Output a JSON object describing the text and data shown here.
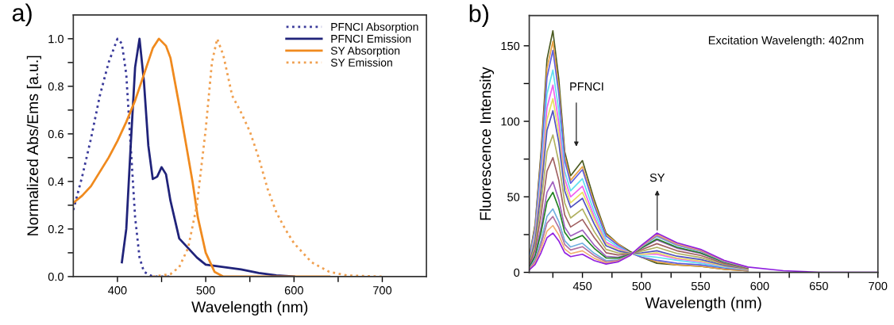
{
  "chart_data": [
    {
      "type": "line",
      "title": "a)",
      "xlabel": "Wavelength (nm)",
      "ylabel": "Normalized Abs/Ems [a.u.]",
      "xlim": [
        350,
        750
      ],
      "xticks": [
        400,
        {
          "value": 450,
          "label": null
        },
        500,
        {
          "value": 550,
          "label": null
        },
        600,
        {
          "value": 650,
          "label": null
        },
        700
      ],
      "ylim": [
        0,
        1.1
      ],
      "yticks": [
        "0.0",
        {
          "value": 0.1,
          "label": null
        },
        0.2,
        {
          "value": 0.3,
          "label": null
        },
        0.4,
        {
          "value": 0.5,
          "label": null
        },
        0.6,
        {
          "value": 0.7,
          "label": null
        },
        0.8,
        {
          "value": 0.9,
          "label": null
        },
        "1.0"
      ],
      "grid": false,
      "legend": "top right",
      "marker": "none",
      "series": [
        {
          "name": "PFNCI Absorption",
          "color": "#3a3a9a",
          "line_style": "dotted",
          "x": [
            350,
            360,
            370,
            380,
            390,
            400,
            405,
            410,
            415,
            420,
            425,
            430,
            440,
            460
          ],
          "values": [
            0.28,
            0.42,
            0.58,
            0.76,
            0.9,
            1.0,
            0.98,
            0.85,
            0.55,
            0.25,
            0.08,
            0.02,
            0,
            0
          ]
        },
        {
          "name": "PFNCI Emission",
          "color": "#20237a",
          "line_style": "solid",
          "x": [
            405,
            410,
            415,
            420,
            425,
            430,
            435,
            440,
            445,
            450,
            455,
            460,
            470,
            480,
            490,
            500,
            520,
            540,
            560,
            580,
            600
          ],
          "values": [
            0.06,
            0.2,
            0.55,
            0.88,
            1.0,
            0.82,
            0.55,
            0.41,
            0.42,
            0.46,
            0.43,
            0.32,
            0.16,
            0.12,
            0.08,
            0.05,
            0.04,
            0.03,
            0.015,
            0.005,
            0
          ]
        },
        {
          "name": "SY Absorption",
          "color": "#f08a1e",
          "line_style": "solid",
          "x": [
            350,
            360,
            370,
            380,
            390,
            400,
            410,
            420,
            430,
            440,
            447,
            455,
            460,
            466,
            470,
            478,
            485,
            491,
            500,
            510,
            520,
            640
          ],
          "values": [
            0.31,
            0.34,
            0.38,
            0.44,
            0.5,
            0.57,
            0.65,
            0.74,
            0.85,
            0.96,
            1.0,
            0.97,
            0.92,
            0.8,
            0.72,
            0.55,
            0.4,
            0.25,
            0.1,
            0.02,
            0,
            0
          ]
        },
        {
          "name": "SY Emission",
          "color": "#f0a050",
          "line_style": "dotted",
          "x": [
            440,
            450,
            460,
            470,
            480,
            490,
            500,
            507,
            513,
            520,
            530,
            540,
            550,
            560,
            570,
            580,
            590,
            600,
            620,
            640,
            660,
            700
          ],
          "values": [
            0,
            0.005,
            0.01,
            0.04,
            0.12,
            0.3,
            0.62,
            0.9,
            1.0,
            0.93,
            0.76,
            0.69,
            0.61,
            0.5,
            0.37,
            0.27,
            0.2,
            0.14,
            0.06,
            0.02,
            0.005,
            0
          ]
        }
      ]
    },
    {
      "type": "line",
      "title": "b)",
      "xlabel": "Wavelength (nm)",
      "ylabel": "Fluorescence Intensity",
      "xlim": [
        405,
        700
      ],
      "xticks": [
        {
          "value": 425,
          "label": null
        },
        450,
        {
          "value": 475,
          "label": null
        },
        500,
        {
          "value": 525,
          "label": null
        },
        550,
        {
          "value": 575,
          "label": null
        },
        600,
        {
          "value": 625,
          "label": null
        },
        650,
        {
          "value": 675,
          "label": null
        },
        700
      ],
      "ylim": [
        0,
        170
      ],
      "yticks": [
        0,
        {
          "value": 25,
          "label": null
        },
        50,
        {
          "value": 75,
          "label": null
        },
        100,
        {
          "value": 125,
          "label": null
        },
        150
      ],
      "grid": false,
      "legend": false,
      "marker": "none",
      "line_style": "solid",
      "x": [
        405,
        410,
        415,
        420,
        425,
        430,
        435,
        440,
        450,
        460,
        470,
        480,
        490,
        500,
        513,
        530,
        550,
        570,
        590,
        620,
        650,
        700
      ],
      "annotations": [
        "Excitation Wavelength: 402nm",
        "PFNCI",
        "SY"
      ],
      "series": [
        {
          "color": "#4a5a20",
          "values": [
            10,
            32,
            80,
            141,
            160,
            128,
            80,
            64,
            74,
            48,
            26,
            19,
            14,
            10,
            6,
            5,
            4,
            2,
            1,
            null,
            null,
            null
          ]
        },
        {
          "color": "#e8a040",
          "values": [
            9,
            31,
            77,
            135,
            153,
            122,
            77,
            61,
            70,
            46,
            25,
            19,
            13,
            10,
            7,
            5,
            4,
            2,
            1,
            null,
            null,
            null
          ]
        },
        {
          "color": "#6060e0",
          "values": [
            9,
            29,
            74,
            129,
            147,
            118,
            74,
            59,
            68,
            44,
            24,
            18,
            13,
            10,
            8,
            6,
            5,
            3,
            1.5,
            null,
            null,
            null
          ]
        },
        {
          "color": "#60e0f0",
          "values": [
            8,
            27,
            67,
            118,
            134,
            107,
            67,
            54,
            62,
            40,
            22,
            17,
            13,
            11,
            10,
            8,
            6,
            3.5,
            1.7,
            null,
            null,
            null
          ]
        },
        {
          "color": "#f060f0",
          "values": [
            7,
            25,
            62,
            109,
            124,
            99,
            62,
            50,
            57,
            37,
            20,
            16,
            13,
            12,
            12,
            9,
            7,
            4,
            1.9,
            null,
            null,
            null
          ]
        },
        {
          "color": "#e8e060",
          "values": [
            7,
            23,
            58,
            101,
            115,
            92,
            58,
            46,
            53,
            35,
            19,
            15,
            13,
            12,
            13,
            9.5,
            7.5,
            4.1,
            1.9,
            null,
            null,
            null
          ]
        },
        {
          "color": "#5050c0",
          "values": [
            6,
            21,
            54,
            94,
            107,
            86,
            54,
            43,
            49,
            32,
            17.6,
            14.3,
            12.6,
            12.9,
            14.3,
            10.7,
            8.5,
            4.6,
            2.2,
            null,
            null,
            null
          ]
        },
        {
          "color": "#b0b060",
          "values": [
            5.5,
            18,
            46,
            80,
            91,
            73,
            46,
            36,
            42,
            27,
            15.2,
            12.9,
            12.3,
            14,
            16.6,
            12.5,
            9.8,
            5.3,
            2.4,
            null,
            null,
            null
          ]
        },
        {
          "color": "#a06060",
          "values": [
            4.6,
            15,
            38,
            67,
            76,
            61,
            38,
            30,
            35,
            23,
            13,
            11.5,
            12.1,
            15,
            19,
            14.3,
            11.2,
            5.9,
            2.7,
            null,
            null,
            null
          ]
        },
        {
          "color": "#a060c0",
          "values": [
            3.6,
            12,
            30,
            53,
            60,
            48,
            30,
            24,
            28,
            18,
            10.6,
            10,
            11.8,
            16,
            21.4,
            16,
            12.5,
            6.6,
            3,
            null,
            null,
            null
          ]
        },
        {
          "color": "#208020",
          "values": [
            3.2,
            10.6,
            26.5,
            46.6,
            53,
            42.4,
            26.5,
            21.2,
            24.4,
            15.9,
            9.5,
            9.4,
            11.5,
            16.2,
            22.1,
            16.6,
            12.9,
            6.8,
            3,
            null,
            null,
            null
          ]
        },
        {
          "color": "#70b0e0",
          "values": [
            2.5,
            8.4,
            21,
            37,
            42,
            33.6,
            21,
            16.8,
            19.3,
            12.6,
            7.8,
            8.3,
            11.3,
            16.8,
            23.7,
            17.8,
            13.8,
            7.2,
            3.2,
            null,
            null,
            null
          ]
        },
        {
          "color": "#b070a0",
          "values": [
            2.2,
            7.4,
            18.5,
            32.6,
            37,
            29.6,
            18.5,
            14.8,
            17,
            11.1,
            7,
            7.9,
            11.2,
            17.2,
            24.5,
            18.4,
            14.2,
            7.5,
            3.3,
            null,
            null,
            null
          ]
        },
        {
          "color": "#f0b070",
          "values": [
            1.9,
            6.2,
            15.5,
            27.3,
            31,
            24.8,
            15.5,
            12.4,
            14.3,
            9.3,
            6.2,
            7.3,
            11,
            17.5,
            25.2,
            18.9,
            14.7,
            7.7,
            3.3,
            null,
            null,
            null
          ]
        },
        {
          "color": "#9020e0",
          "values": [
            1.6,
            5.2,
            13,
            22.9,
            26,
            20.8,
            13,
            10.4,
            12,
            7.8,
            5.5,
            6.9,
            11,
            17.9,
            26,
            19.6,
            15.2,
            7.9,
            3.5,
            1.1,
            0,
            0
          ]
        }
      ]
    }
  ]
}
